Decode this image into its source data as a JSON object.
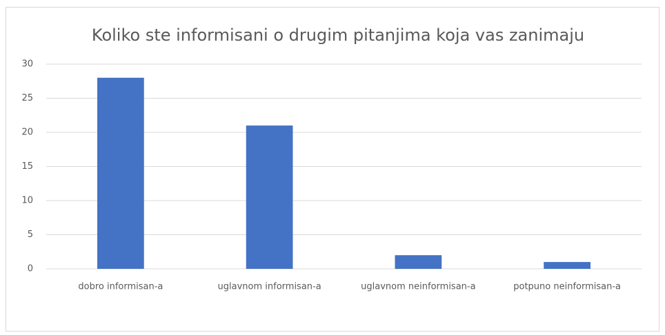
{
  "chart_data": {
    "type": "bar",
    "title": "Koliko ste informisani o drugim pitanjima koja vas zanimaju",
    "categories": [
      "dobro informisan-a",
      "uglavnom informisan-a",
      "uglavnom neinformisan-a",
      "potpuno neinformisan-a"
    ],
    "values": [
      28,
      21,
      2,
      1
    ],
    "color": "#4472c4",
    "ylim": [
      0,
      30
    ],
    "yticks": [
      0,
      5,
      10,
      15,
      20,
      25,
      30
    ],
    "grid": true
  }
}
